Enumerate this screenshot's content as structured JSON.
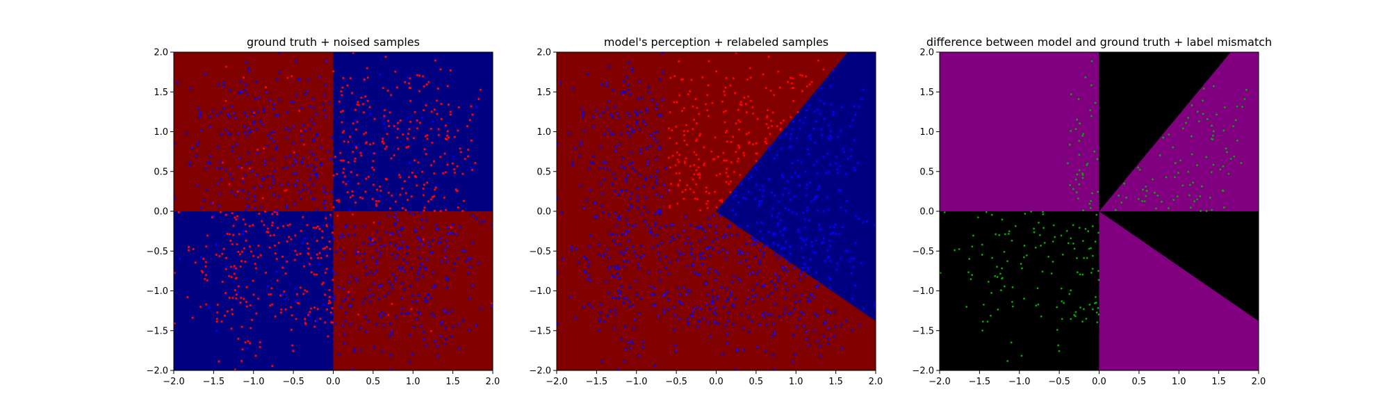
{
  "chart_data": [
    {
      "type": "scatter",
      "title": "ground truth + noised samples",
      "xlim": [
        -2,
        2
      ],
      "ylim": [
        -2,
        2
      ],
      "xticks": [
        "−2.0",
        "−1.5",
        "−1.0",
        "−0.5",
        "0.0",
        "0.5",
        "1.0",
        "1.5",
        "2.0"
      ],
      "yticks": [
        "2.0",
        "1.5",
        "1.0",
        "0.5",
        "0.0",
        "−0.5",
        "−1.0",
        "−1.5",
        "−2.0"
      ],
      "background_regions": "quadrant checkerboard: x*y<0 dark red, x*y>0 dark blue",
      "colors": {
        "region_a": "#800000",
        "region_b": "#000080",
        "point_a": "#ff0000",
        "point_b": "#0000ff"
      },
      "series": [
        {
          "points": "samples colored red where x*y>0 and blue where x*y<0, noisy labels",
          "count": 1000
        }
      ]
    },
    {
      "type": "scatter",
      "title": "model's perception + relabeled samples",
      "xlim": [
        -2,
        2
      ],
      "ylim": [
        -2,
        2
      ],
      "xticks": [
        "−2.0",
        "−1.5",
        "−1.0",
        "−0.5",
        "0.0",
        "0.5",
        "1.0",
        "1.5",
        "2.0"
      ],
      "yticks": [
        "2.0",
        "1.5",
        "1.0",
        "0.5",
        "0.0",
        "−0.5",
        "−1.0",
        "−1.5",
        "−2.0"
      ],
      "background_regions": "dark blue wedge between ray to (1.65,2.0) and ray to (2.0,-1.38) from origin; dark red elsewhere",
      "colors": {
        "region_a": "#800000",
        "region_b": "#000080",
        "point_a": "#ff0000",
        "point_b": "#0000ff"
      },
      "wedge_rays": [
        [
          1.65,
          2.0
        ],
        [
          2.0,
          -1.38
        ]
      ],
      "series": [
        {
          "points": "samples relabeled by model prediction",
          "count": 1000
        }
      ]
    },
    {
      "type": "scatter",
      "title": "difference between model and ground truth + label mismatch",
      "xlim": [
        -2,
        2
      ],
      "ylim": [
        -2,
        2
      ],
      "xticks": [
        "−2.0",
        "−1.5",
        "−1.0",
        "−0.5",
        "0.0",
        "0.5",
        "1.0",
        "1.5",
        "2.0"
      ],
      "yticks": [
        "2.0",
        "1.5",
        "1.0",
        "0.5",
        "0.0",
        "−0.5",
        "−1.0",
        "−1.5",
        "−2.0"
      ],
      "background_regions": "purple where model agrees with ground truth, black where it disagrees",
      "colors": {
        "agree": "#800080",
        "disagree": "#000000",
        "point": "#00aa00"
      },
      "series": [
        {
          "points": "mismatched samples shown in green",
          "count": 500
        }
      ]
    }
  ]
}
